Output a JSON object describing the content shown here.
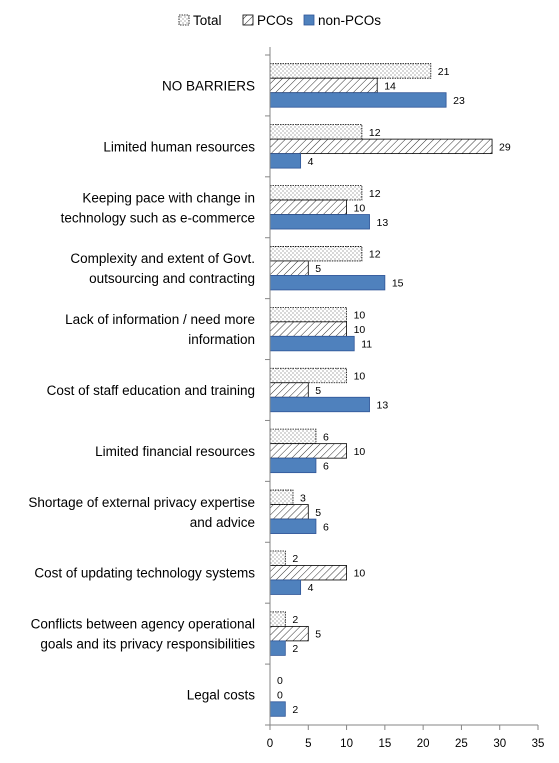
{
  "chart_data": {
    "type": "bar",
    "orientation": "horizontal",
    "categories": [
      [
        "NO BARRIERS"
      ],
      [
        "Limited human resources"
      ],
      [
        "Keeping pace with change in",
        "technology such as e-commerce"
      ],
      [
        "Complexity and extent of Govt.",
        "outsourcing and contracting"
      ],
      [
        "Lack of information / need more",
        "information"
      ],
      [
        "Cost of staff education and training"
      ],
      [
        "Limited financial resources"
      ],
      [
        "Shortage of external privacy expertise",
        "and advice"
      ],
      [
        "Cost of updating technology systems"
      ],
      [
        "Conflicts between agency operational",
        "goals and its privacy responsibilities"
      ],
      [
        "Legal costs"
      ]
    ],
    "series": [
      {
        "name": "Total",
        "pattern": "dots",
        "color": "#000000",
        "values": [
          21,
          12,
          12,
          12,
          10,
          10,
          6,
          3,
          2,
          2,
          0
        ]
      },
      {
        "name": "PCOs",
        "pattern": "hatch",
        "color": "#000000",
        "values": [
          14,
          29,
          10,
          5,
          10,
          5,
          10,
          5,
          10,
          5,
          0
        ]
      },
      {
        "name": "non-PCOs",
        "pattern": "solid",
        "color": "#4f81bd",
        "values": [
          23,
          4,
          13,
          15,
          11,
          13,
          6,
          6,
          4,
          2,
          2
        ]
      }
    ],
    "xlim": [
      0,
      35
    ],
    "xticks": [
      0,
      5,
      10,
      15,
      20,
      25,
      30,
      35
    ],
    "grid": false,
    "legend_position": "top"
  },
  "colors": {
    "solid_fill": "#4f81bd",
    "solid_stroke": "#2f5597",
    "axis": "#868686"
  }
}
